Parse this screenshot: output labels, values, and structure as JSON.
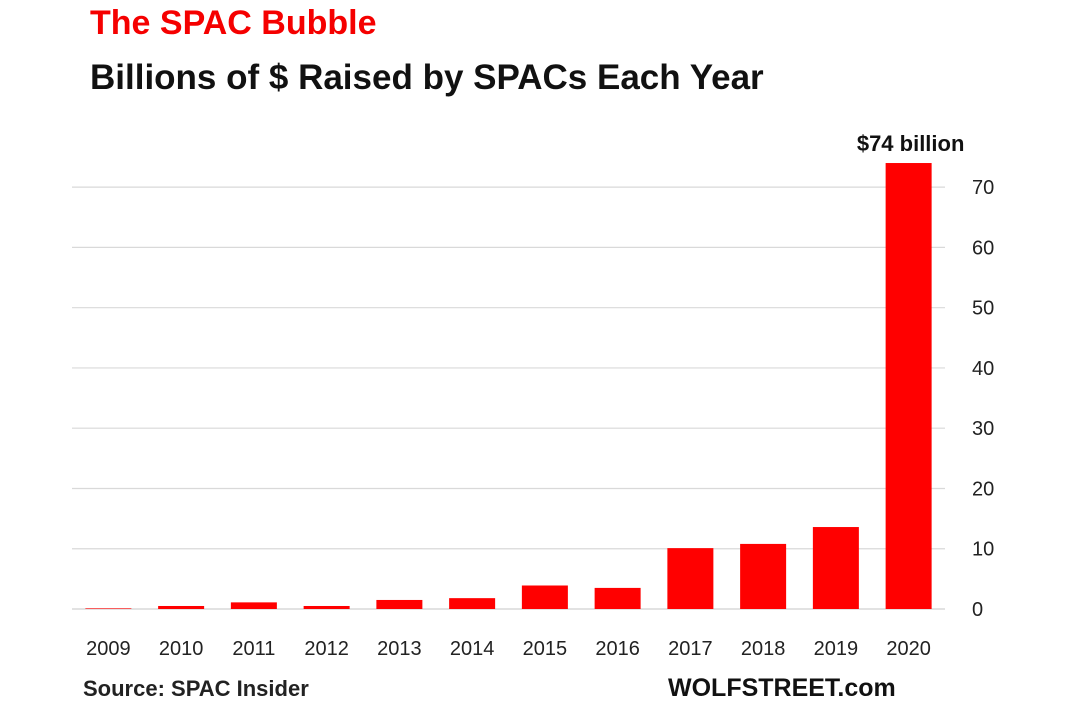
{
  "header": {
    "kicker": "The SPAC Bubble",
    "title": "Billions of $ Raised by SPACs Each Year"
  },
  "footer": {
    "source": "Source: SPAC Insider",
    "brand": "WOLFSTREET.com"
  },
  "colors": {
    "bar": "#ff0000",
    "kicker": "#f50000",
    "grid": "#d9d9d9",
    "text": "#222222"
  },
  "chart_data": {
    "type": "bar",
    "categories": [
      "2009",
      "2010",
      "2011",
      "2012",
      "2013",
      "2014",
      "2015",
      "2016",
      "2017",
      "2018",
      "2019",
      "2020"
    ],
    "values": [
      0.1,
      0.5,
      1.1,
      0.5,
      1.5,
      1.8,
      3.9,
      3.5,
      10.1,
      10.8,
      13.6,
      74
    ],
    "ylim": [
      0,
      75
    ],
    "yticks": [
      0,
      10,
      20,
      30,
      40,
      50,
      60,
      70
    ],
    "y_axis_side": "right",
    "grid": true,
    "annotations": [
      {
        "category": "2020",
        "text": "$74 billion"
      }
    ]
  }
}
